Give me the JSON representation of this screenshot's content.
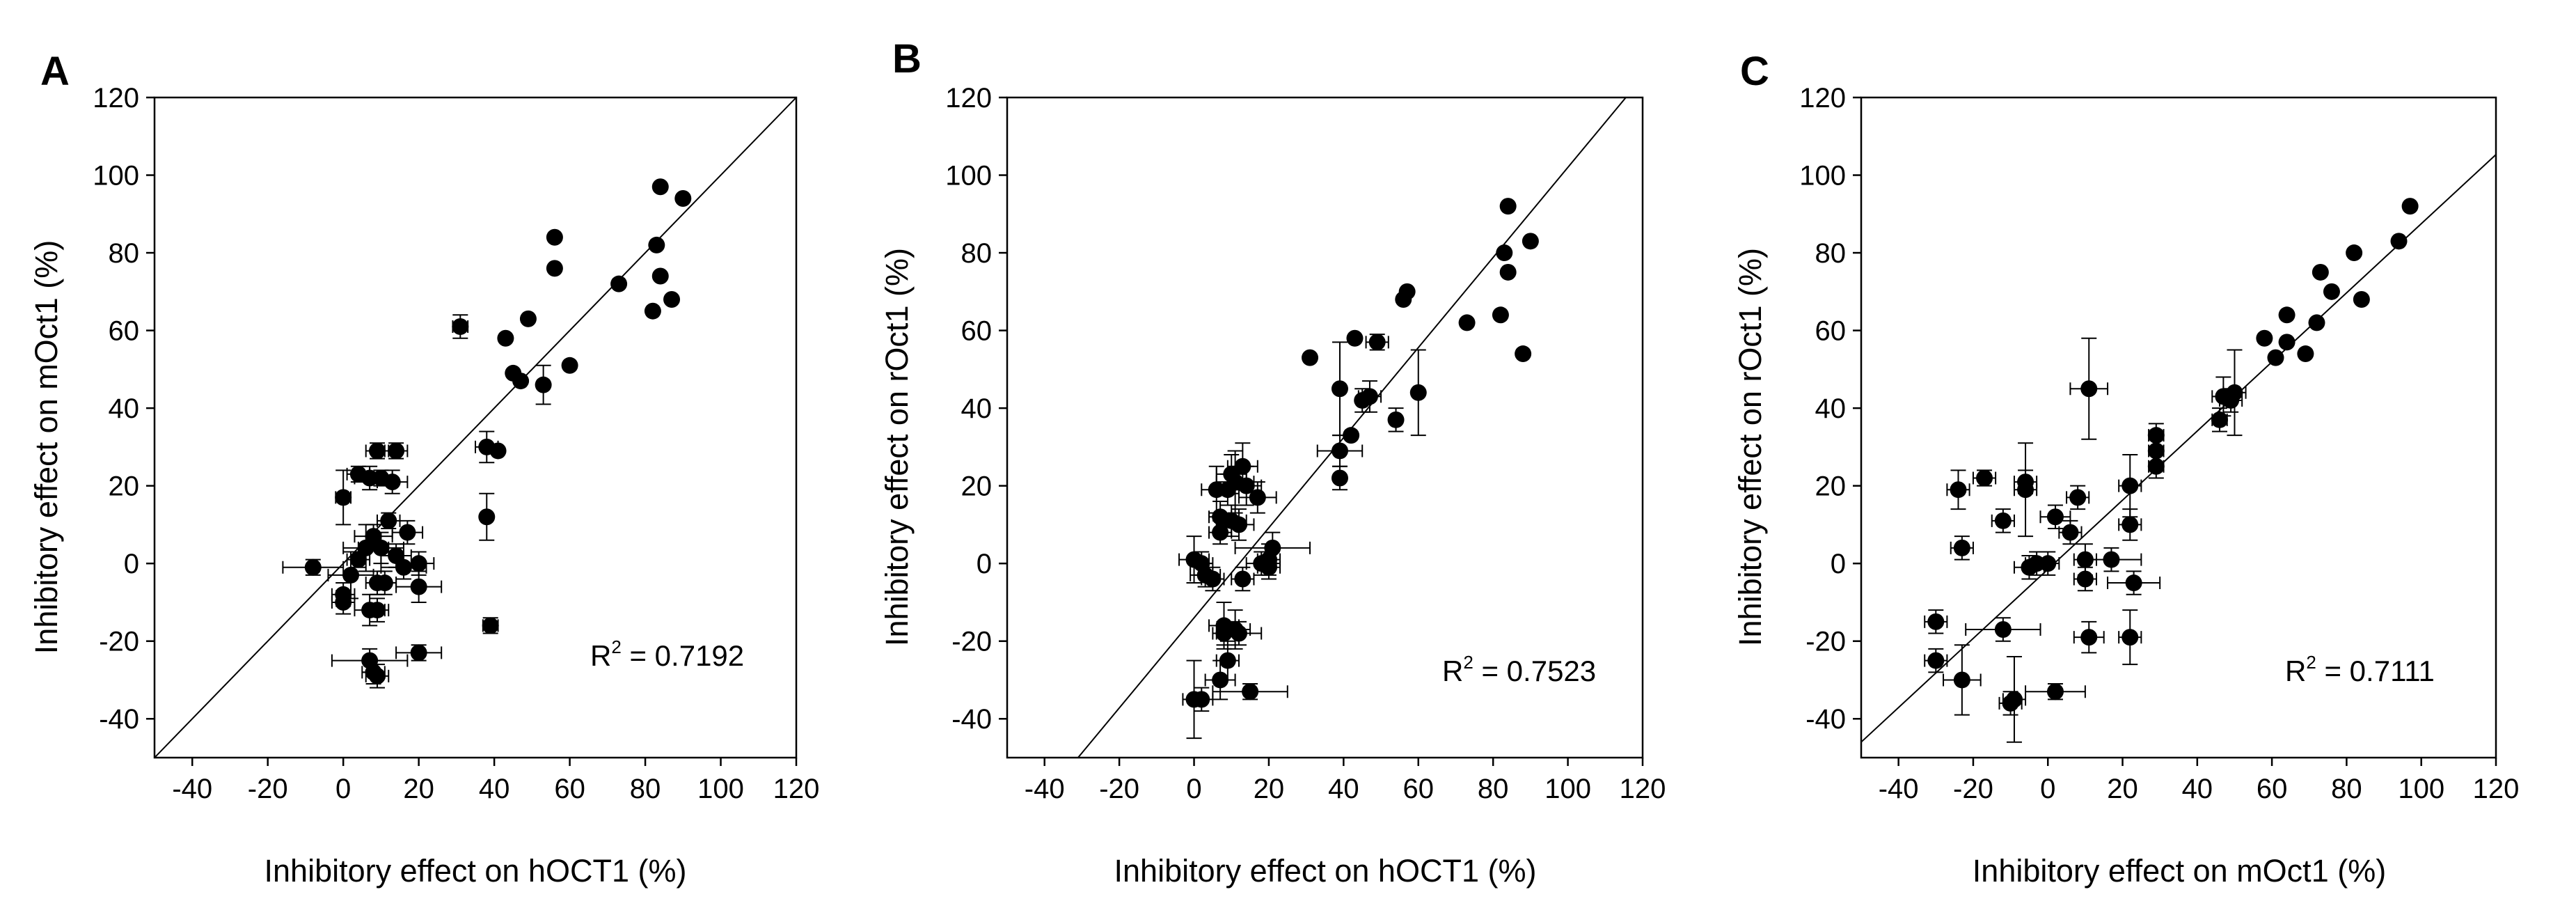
{
  "chart_data": [
    {
      "panel": "A",
      "type": "scatter",
      "xlabel": "Inhibitory effect on hOCT1 (%)",
      "ylabel": "Inhibitory effect on mOct1 (%)",
      "xlim": [
        -50,
        120
      ],
      "ylim": [
        -50,
        120
      ],
      "xticks": [
        -40,
        -20,
        0,
        20,
        40,
        60,
        80,
        100,
        120
      ],
      "yticks": [
        -40,
        -20,
        0,
        20,
        40,
        60,
        80,
        100,
        120
      ],
      "r2_prefix": "R",
      "r2_sup": "2",
      "r2_value": " = 0.7192",
      "fit_line": {
        "slope": 1.0,
        "intercept": 0.0
      },
      "points": [
        {
          "x": 84,
          "y": 97
        },
        {
          "x": 90,
          "y": 94
        },
        {
          "x": 56,
          "y": 84
        },
        {
          "x": 83,
          "y": 82
        },
        {
          "x": 56,
          "y": 76
        },
        {
          "x": 84,
          "y": 74
        },
        {
          "x": 73,
          "y": 72
        },
        {
          "x": 87,
          "y": 68
        },
        {
          "x": 82,
          "y": 65
        },
        {
          "x": 49,
          "y": 63
        },
        {
          "x": 31,
          "y": 61,
          "ex": 2,
          "ey": 3
        },
        {
          "x": 43,
          "y": 58
        },
        {
          "x": 60,
          "y": 51
        },
        {
          "x": 45,
          "y": 49
        },
        {
          "x": 47,
          "y": 47
        },
        {
          "x": 53,
          "y": 46,
          "ey": 5
        },
        {
          "x": 38,
          "y": 30,
          "ex": 3,
          "ey": 4
        },
        {
          "x": 41,
          "y": 29
        },
        {
          "x": 14,
          "y": 29,
          "ex": 3,
          "ey": 2
        },
        {
          "x": 9,
          "y": 29,
          "ex": 3,
          "ey": 2
        },
        {
          "x": 4,
          "y": 23,
          "ex": 3,
          "ey": 2
        },
        {
          "x": 7,
          "y": 22,
          "ex": 4,
          "ey": 3
        },
        {
          "x": 10,
          "y": 22,
          "ex": 3,
          "ey": 2
        },
        {
          "x": 13,
          "y": 21,
          "ex": 4,
          "ey": 3
        },
        {
          "x": 0,
          "y": 17,
          "ex": 2,
          "ey": 7
        },
        {
          "x": 38,
          "y": 12,
          "ey": 6
        },
        {
          "x": 12,
          "y": 11,
          "ex": 3,
          "ey": 2
        },
        {
          "x": 17,
          "y": 8,
          "ex": 4,
          "ey": 3
        },
        {
          "x": 8,
          "y": 7,
          "ex": 5,
          "ey": 3
        },
        {
          "x": 6,
          "y": 4,
          "ex": 6,
          "ey": 6
        },
        {
          "x": 10,
          "y": 4,
          "ex": 6,
          "ey": 4
        },
        {
          "x": 14,
          "y": 2,
          "ex": 4,
          "ey": 3
        },
        {
          "x": 4,
          "y": 1,
          "ex": 3,
          "ey": 2
        },
        {
          "x": 20,
          "y": 0,
          "ex": 4,
          "ey": 3
        },
        {
          "x": 16,
          "y": -1,
          "ex": 6,
          "ey": 3
        },
        {
          "x": -8,
          "y": -1,
          "ex": 8,
          "ey": 2
        },
        {
          "x": 2,
          "y": -3,
          "ex": 6,
          "ey": 6
        },
        {
          "x": 11,
          "y": -5,
          "ex": 3,
          "ey": 3
        },
        {
          "x": 9,
          "y": -5,
          "ex": 3,
          "ey": 3
        },
        {
          "x": 20,
          "y": -6,
          "ex": 6,
          "ey": 4
        },
        {
          "x": 0,
          "y": -8,
          "ex": 3,
          "ey": 3
        },
        {
          "x": 0,
          "y": -10,
          "ex": 3,
          "ey": 3
        },
        {
          "x": 7,
          "y": -12,
          "ex": 4,
          "ey": 4
        },
        {
          "x": 9,
          "y": -12,
          "ex": 3,
          "ey": 3
        },
        {
          "x": 39,
          "y": -16,
          "ex": 2,
          "ey": 2
        },
        {
          "x": 20,
          "y": -23,
          "ex": 6,
          "ey": 2
        },
        {
          "x": 7,
          "y": -25,
          "ex": 10,
          "ey": 3
        },
        {
          "x": 8,
          "y": -28,
          "ex": 3,
          "ey": 3
        },
        {
          "x": 9,
          "y": -29,
          "ex": 3,
          "ey": 3
        }
      ]
    },
    {
      "panel": "B",
      "type": "scatter",
      "xlabel": "Inhibitory effect on hOCT1 (%)",
      "ylabel": "Inhibitory effect on rOct1 (%)",
      "xlim": [
        -50,
        120
      ],
      "ylim": [
        -50,
        120
      ],
      "xticks": [
        -40,
        -20,
        0,
        20,
        40,
        60,
        80,
        100,
        120
      ],
      "yticks": [
        -40,
        -20,
        0,
        20,
        40,
        60,
        80,
        100,
        120
      ],
      "r2_prefix": "R",
      "r2_sup": "2",
      "r2_value": " = 0.7523",
      "fit_line": {
        "slope": 1.16,
        "intercept": -14
      },
      "points": [
        {
          "x": 84,
          "y": 92
        },
        {
          "x": 90,
          "y": 83
        },
        {
          "x": 83,
          "y": 80
        },
        {
          "x": 84,
          "y": 75
        },
        {
          "x": 57,
          "y": 70
        },
        {
          "x": 56,
          "y": 68
        },
        {
          "x": 82,
          "y": 64
        },
        {
          "x": 73,
          "y": 62
        },
        {
          "x": 43,
          "y": 58
        },
        {
          "x": 49,
          "y": 57,
          "ex": 3,
          "ey": 2
        },
        {
          "x": 88,
          "y": 54
        },
        {
          "x": 31,
          "y": 53
        },
        {
          "x": 39,
          "y": 45,
          "ey": 12
        },
        {
          "x": 60,
          "y": 44,
          "ey": 11
        },
        {
          "x": 47,
          "y": 43,
          "ex": 3,
          "ey": 4
        },
        {
          "x": 45,
          "y": 42,
          "ey": 3
        },
        {
          "x": 54,
          "y": 37,
          "ey": 3
        },
        {
          "x": 42,
          "y": 33
        },
        {
          "x": 39,
          "y": 29,
          "ex": 6,
          "ey": 4
        },
        {
          "x": 13,
          "y": 25,
          "ex": 4,
          "ey": 6
        },
        {
          "x": 10,
          "y": 23,
          "ex": 4,
          "ey": 5
        },
        {
          "x": 11,
          "y": 21,
          "ex": 5,
          "ey": 8
        },
        {
          "x": 6,
          "y": 19,
          "ex": 4,
          "ey": 6
        },
        {
          "x": 9,
          "y": 19,
          "ex": 3,
          "ey": 4
        },
        {
          "x": 14,
          "y": 20,
          "ex": 4,
          "ey": 5
        },
        {
          "x": 17,
          "y": 17,
          "ex": 5,
          "ey": 4
        },
        {
          "x": 39,
          "y": 22,
          "ey": 3
        },
        {
          "x": 7,
          "y": 12,
          "ex": 3,
          "ey": 4
        },
        {
          "x": 10,
          "y": 11,
          "ex": 4,
          "ey": 4
        },
        {
          "x": 12,
          "y": 10,
          "ex": 4,
          "ey": 4
        },
        {
          "x": 7,
          "y": 8,
          "ex": 3,
          "ey": 3
        },
        {
          "x": 21,
          "y": 4,
          "ex": 10,
          "ey": 4
        },
        {
          "x": 20,
          "y": 1,
          "ex": 3,
          "ey": 4
        },
        {
          "x": 0,
          "y": 1,
          "ex": 4,
          "ey": 6
        },
        {
          "x": 2,
          "y": 0,
          "ex": 3,
          "ey": 3
        },
        {
          "x": 18,
          "y": 0,
          "ex": 4,
          "ey": 3
        },
        {
          "x": 20,
          "y": -1,
          "ex": 3,
          "ey": 3
        },
        {
          "x": 3,
          "y": -3,
          "ex": 4,
          "ey": 3
        },
        {
          "x": 13,
          "y": -4,
          "ex": 3,
          "ey": 3
        },
        {
          "x": 5,
          "y": -4,
          "ex": 3,
          "ey": 3
        },
        {
          "x": 8,
          "y": -16,
          "ex": 4,
          "ey": 6
        },
        {
          "x": 11,
          "y": -17,
          "ex": 4,
          "ey": 5
        },
        {
          "x": 8,
          "y": -18,
          "ex": 3,
          "ey": 3
        },
        {
          "x": 12,
          "y": -18,
          "ex": 6,
          "ey": 3
        },
        {
          "x": 9,
          "y": -25,
          "ex": 3,
          "ey": 5
        },
        {
          "x": 7,
          "y": -30,
          "ex": 4,
          "ey": 5
        },
        {
          "x": 15,
          "y": -33,
          "ex": 10,
          "ey": 2
        },
        {
          "x": 0,
          "y": -35,
          "ex": 3,
          "ey": 10
        },
        {
          "x": 2,
          "y": -35,
          "ex": 3,
          "ey": 3
        }
      ]
    },
    {
      "panel": "C",
      "type": "scatter",
      "xlabel": "Inhibitory effect on mOct1 (%)",
      "ylabel": "Inhibitory effect on rOct1 (%)",
      "xlim": [
        -50,
        120
      ],
      "ylim": [
        -50,
        120
      ],
      "xticks": [
        -40,
        -20,
        0,
        20,
        40,
        60,
        80,
        100,
        120
      ],
      "yticks": [
        -40,
        -20,
        0,
        20,
        40,
        60,
        80,
        100,
        120
      ],
      "r2_prefix": "R",
      "r2_sup": "2",
      "r2_value": " = 0.7111",
      "fit_line": {
        "slope": 0.89,
        "intercept": -1.5
      },
      "points": [
        {
          "x": 97,
          "y": 92
        },
        {
          "x": 94,
          "y": 83
        },
        {
          "x": 82,
          "y": 80
        },
        {
          "x": 73,
          "y": 75
        },
        {
          "x": 76,
          "y": 70
        },
        {
          "x": 84,
          "y": 68
        },
        {
          "x": 64,
          "y": 64
        },
        {
          "x": 72,
          "y": 62
        },
        {
          "x": 58,
          "y": 58
        },
        {
          "x": 64,
          "y": 57
        },
        {
          "x": 69,
          "y": 54
        },
        {
          "x": 61,
          "y": 53
        },
        {
          "x": 11,
          "y": 45,
          "ex": 5,
          "ey": 13
        },
        {
          "x": 50,
          "y": 44,
          "ex": 3,
          "ey": 11
        },
        {
          "x": 47,
          "y": 43,
          "ex": 3,
          "ey": 5
        },
        {
          "x": 49,
          "y": 42,
          "ex": 3,
          "ey": 3
        },
        {
          "x": 46,
          "y": 37,
          "ex": 2,
          "ey": 3
        },
        {
          "x": 29,
          "y": 33,
          "ex": 2,
          "ey": 3
        },
        {
          "x": 29,
          "y": 29,
          "ex": 2,
          "ey": 3
        },
        {
          "x": 29,
          "y": 25,
          "ex": 2,
          "ey": 3
        },
        {
          "x": -17,
          "y": 22,
          "ex": 3,
          "ey": 2
        },
        {
          "x": -6,
          "y": 21,
          "ex": 3,
          "ey": 3
        },
        {
          "x": -6,
          "y": 19,
          "ex": 3,
          "ey": 12
        },
        {
          "x": 22,
          "y": 20,
          "ex": 3,
          "ey": 8
        },
        {
          "x": -24,
          "y": 19,
          "ex": 3,
          "ey": 5
        },
        {
          "x": 8,
          "y": 17,
          "ex": 3,
          "ey": 3
        },
        {
          "x": 2,
          "y": 12,
          "ex": 4,
          "ey": 3
        },
        {
          "x": -12,
          "y": 11,
          "ex": 3,
          "ey": 3
        },
        {
          "x": 22,
          "y": 10,
          "ex": 3,
          "ey": 4
        },
        {
          "x": 6,
          "y": 8,
          "ex": 3,
          "ey": 3
        },
        {
          "x": -23,
          "y": 4,
          "ex": 3,
          "ey": 3
        },
        {
          "x": 10,
          "y": 1,
          "ex": 3,
          "ey": 4
        },
        {
          "x": 17,
          "y": 1,
          "ex": 8,
          "ey": 3
        },
        {
          "x": -3,
          "y": 0,
          "ex": 3,
          "ey": 3
        },
        {
          "x": 0,
          "y": 0,
          "ex": 3,
          "ey": 3
        },
        {
          "x": -5,
          "y": -1,
          "ex": 4,
          "ey": 3
        },
        {
          "x": 10,
          "y": -4,
          "ex": 3,
          "ey": 3
        },
        {
          "x": 23,
          "y": -5,
          "ex": 7,
          "ey": 3
        },
        {
          "x": -30,
          "y": -15,
          "ex": 3,
          "ey": 3
        },
        {
          "x": -12,
          "y": -17,
          "ex": 10,
          "ey": 3
        },
        {
          "x": 11,
          "y": -19,
          "ex": 4,
          "ey": 4
        },
        {
          "x": 22,
          "y": -19,
          "ex": 3,
          "ey": 7
        },
        {
          "x": -30,
          "y": -25,
          "ex": 3,
          "ey": 3
        },
        {
          "x": -23,
          "y": -30,
          "ex": 5,
          "ey": 9
        },
        {
          "x": 2,
          "y": -33,
          "ex": 8,
          "ey": 2
        },
        {
          "x": -9,
          "y": -35,
          "ex": 3,
          "ey": 11
        },
        {
          "x": -10,
          "y": -36,
          "ex": 3,
          "ey": 3
        }
      ]
    }
  ]
}
